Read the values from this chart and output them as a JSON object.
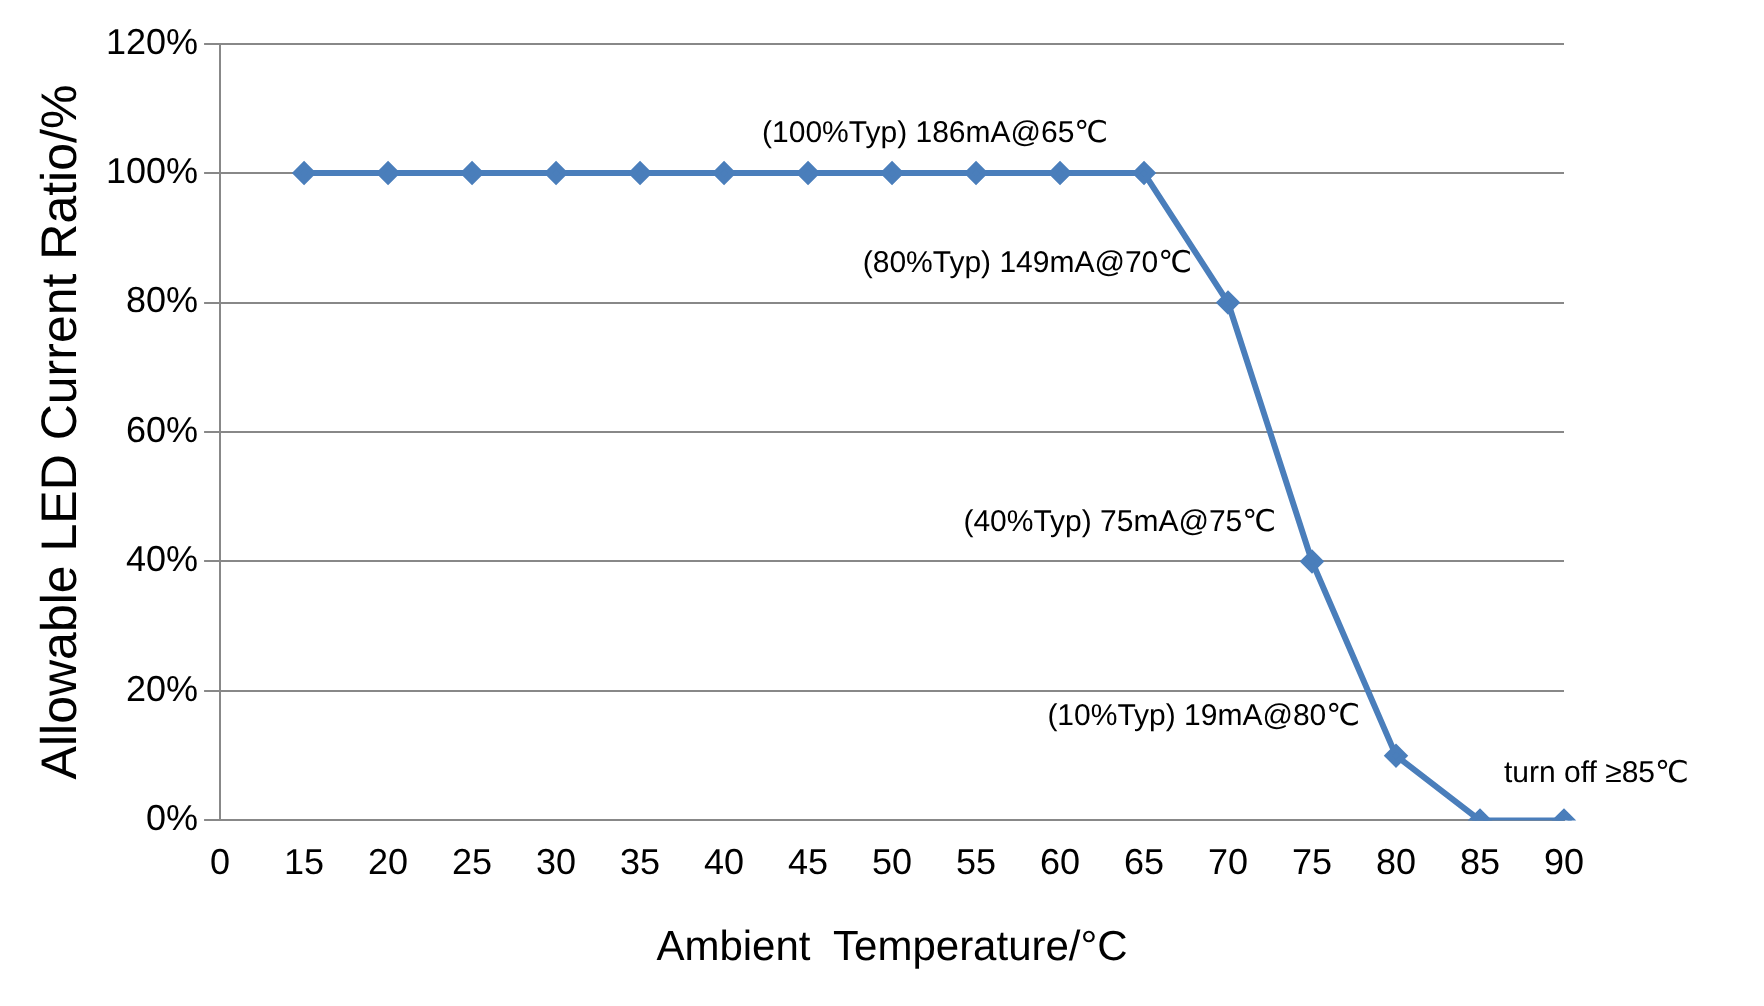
{
  "chart_data": {
    "type": "line",
    "xlabel": "Ambient  Temperature/°C",
    "ylabel": "Allowable LED Current Ratio/%",
    "categories": [
      "0",
      "15",
      "20",
      "25",
      "30",
      "35",
      "40",
      "45",
      "50",
      "55",
      "60",
      "65",
      "70",
      "75",
      "80",
      "85",
      "90"
    ],
    "series": [
      {
        "color": "#4a7ebb",
        "values": [
          null,
          100,
          100,
          100,
          100,
          100,
          100,
          100,
          100,
          100,
          100,
          100,
          80,
          40,
          10,
          0,
          0
        ]
      }
    ],
    "ylim": [
      0,
      120
    ],
    "yticks": [
      {
        "value": 0,
        "label": "0%"
      },
      {
        "value": 20,
        "label": "20%"
      },
      {
        "value": 40,
        "label": "40%"
      },
      {
        "value": 60,
        "label": "60%"
      },
      {
        "value": 80,
        "label": "80%"
      },
      {
        "value": 100,
        "label": "100%"
      },
      {
        "value": 120,
        "label": "120%"
      }
    ],
    "grid": "y",
    "legend": false,
    "marker": "diamond",
    "line_style": "solid",
    "annotations": [
      {
        "text": "(100%Typ) 186mA@65℃",
        "x": "65",
        "y": 100
      },
      {
        "text": "(80%Typ) 149mA@70℃",
        "x": "70",
        "y": 80
      },
      {
        "text": "(40%Typ) 75mA@75℃",
        "x": "75",
        "y": 40
      },
      {
        "text": "(10%Typ) 19mA@80℃",
        "x": "80",
        "y": 10
      },
      {
        "text": "turn off ≥85℃",
        "x": "90",
        "y": 0
      }
    ]
  }
}
